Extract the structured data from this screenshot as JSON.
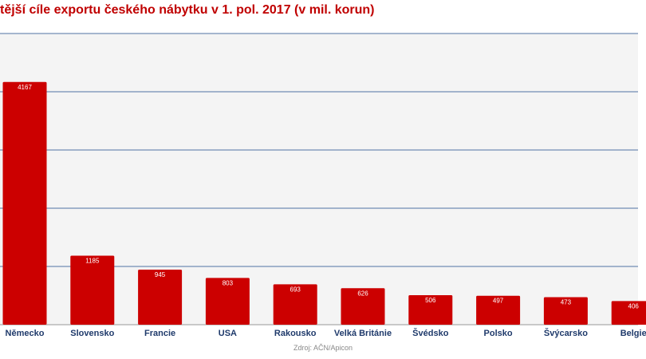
{
  "chart_data": {
    "type": "bar",
    "title": "tější cíle exportu českého nábytku v 1. pol. 2017 (v mil. korun)",
    "categories": [
      "Německo",
      "Slovensko",
      "Francie",
      "USA",
      "Rakousko",
      "Velká Británie",
      "Švédsko",
      "Polsko",
      "Švýcarsko",
      "Belgie"
    ],
    "values": [
      4167,
      1185,
      945,
      803,
      693,
      626,
      506,
      497,
      473,
      406
    ],
    "ylim": [
      0,
      5000
    ],
    "yticks": [
      1000,
      2000,
      3000,
      4000,
      5000
    ],
    "grid": true,
    "data_labels": true,
    "source": "Zdroj: AČN/Apicon",
    "colors": {
      "bar": "#cc0000",
      "grid": "#4f72a3",
      "label": "#1f3a6b",
      "title": "#c00000",
      "plot_bg": "#f4f4f4"
    }
  }
}
